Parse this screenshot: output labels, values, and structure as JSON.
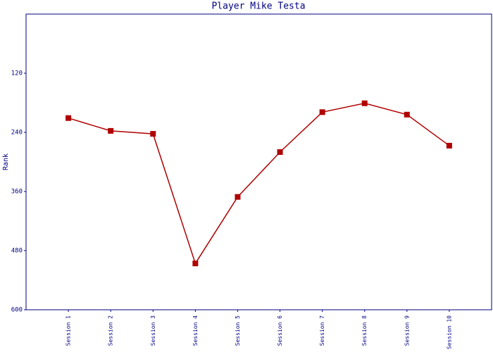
{
  "chart_data": {
    "type": "line",
    "title": "Player Mike Testa",
    "y_label": "Rank",
    "categories": [
      "Session 1",
      "Session 2",
      "Session 3",
      "Session 4",
      "Session 5",
      "Session 6",
      "Session 7",
      "Session 8",
      "Session 9",
      "Session 10"
    ],
    "series": [
      {
        "name": "Rank",
        "color": "#b00000",
        "values": [
          211,
          237,
          243,
          506,
          371,
          280,
          199,
          181,
          204,
          267
        ]
      }
    ],
    "ylim": [
      600,
      0
    ],
    "yticks": [
      120,
      240,
      360,
      480,
      600
    ],
    "grid": false
  }
}
